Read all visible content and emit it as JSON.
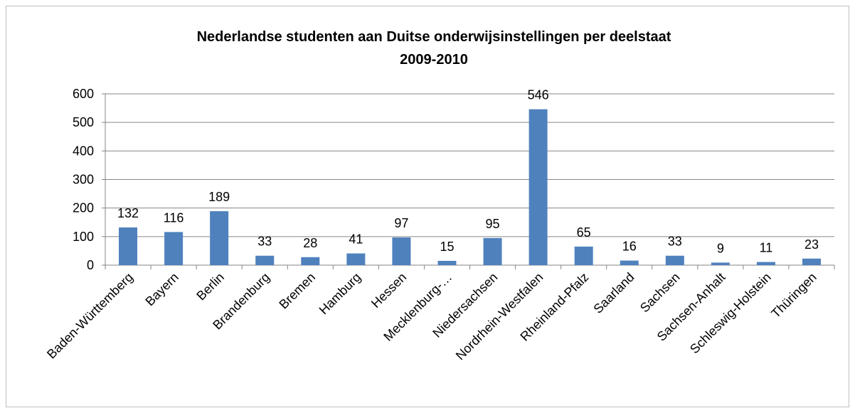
{
  "chart_data": {
    "type": "bar",
    "title": [
      "Nederlandse studenten aan Duitse onderwijsinstellingen per deelstaat",
      "2009-2010"
    ],
    "categories": [
      "Baden-Württemberg",
      "Bayern",
      "Berlin",
      "Brandenburg",
      "Bremen",
      "Hamburg",
      "Hessen",
      "Mecklenburg-…",
      "Niedersachsen",
      "Nordrhein-Westfalen",
      "Rheinland-Pfalz",
      "Saarland",
      "Sachsen",
      "Sachsen-Anhalt",
      "Schleswig-Holstein",
      "Thüringen"
    ],
    "values": [
      132,
      116,
      189,
      33,
      28,
      41,
      97,
      15,
      95,
      546,
      65,
      16,
      33,
      9,
      11,
      23
    ],
    "color": "#4f81bd",
    "ylim": [
      0,
      600
    ],
    "yticks": [
      0,
      100,
      200,
      300,
      400,
      500,
      600
    ],
    "grid": true
  }
}
